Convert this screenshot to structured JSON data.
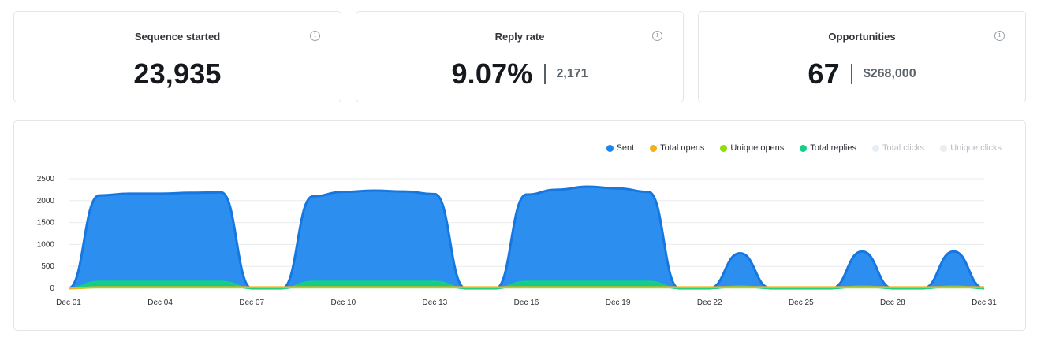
{
  "stats": [
    {
      "title": "Sequence started",
      "value": "23,935",
      "sub": ""
    },
    {
      "title": "Reply rate",
      "value": "9.07%",
      "sub": "2,171"
    },
    {
      "title": "Opportunities",
      "value": "67",
      "sub": "$268,000"
    }
  ],
  "info_glyph": "i",
  "legend": [
    {
      "label": "Sent",
      "color": "#1a86ee",
      "active": true
    },
    {
      "label": "Total opens",
      "color": "#f5b014",
      "active": true
    },
    {
      "label": "Unique opens",
      "color": "#8fe000",
      "active": true
    },
    {
      "label": "Total replies",
      "color": "#12d086",
      "active": true
    },
    {
      "label": "Total clicks",
      "color": "#e8eef5",
      "active": false
    },
    {
      "label": "Unique clicks",
      "color": "#e8eef5",
      "active": false
    }
  ],
  "chart_data": {
    "type": "area",
    "x": [
      "Dec 01",
      "Dec 02",
      "Dec 03",
      "Dec 04",
      "Dec 05",
      "Dec 06",
      "Dec 07",
      "Dec 08",
      "Dec 09",
      "Dec 10",
      "Dec 11",
      "Dec 12",
      "Dec 13",
      "Dec 14",
      "Dec 15",
      "Dec 16",
      "Dec 17",
      "Dec 18",
      "Dec 19",
      "Dec 20",
      "Dec 21",
      "Dec 22",
      "Dec 23",
      "Dec 24",
      "Dec 25",
      "Dec 26",
      "Dec 27",
      "Dec 28",
      "Dec 29",
      "Dec 30",
      "Dec 31"
    ],
    "xticks": [
      "Dec 01",
      "Dec 04",
      "Dec 07",
      "Dec 10",
      "Dec 13",
      "Dec 16",
      "Dec 19",
      "Dec 22",
      "Dec 25",
      "Dec 28",
      "Dec 31"
    ],
    "yticks": [
      0,
      500,
      1000,
      1500,
      2000,
      2500
    ],
    "ylim": [
      0,
      2500
    ],
    "grid": true,
    "legend_position": "top-right",
    "series": [
      {
        "name": "Sent",
        "values": [
          0,
          2120,
          2160,
          2160,
          2180,
          2190,
          0,
          0,
          2100,
          2200,
          2230,
          2210,
          2150,
          0,
          0,
          2140,
          2250,
          2320,
          2280,
          2200,
          0,
          0,
          800,
          0,
          0,
          0,
          840,
          0,
          0,
          840,
          0
        ]
      },
      {
        "name": "Total replies",
        "values": [
          0,
          150,
          150,
          150,
          150,
          150,
          0,
          0,
          150,
          150,
          150,
          150,
          150,
          0,
          0,
          150,
          150,
          150,
          150,
          150,
          0,
          0,
          50,
          0,
          0,
          0,
          50,
          0,
          0,
          50,
          0
        ]
      },
      {
        "name": "Unique opens",
        "values": [
          0,
          20,
          20,
          20,
          20,
          20,
          20,
          20,
          20,
          20,
          20,
          20,
          20,
          20,
          20,
          20,
          20,
          20,
          20,
          20,
          20,
          20,
          20,
          20,
          20,
          20,
          20,
          20,
          20,
          20,
          20
        ]
      },
      {
        "name": "Total opens",
        "values": [
          0,
          25,
          25,
          25,
          25,
          25,
          25,
          25,
          25,
          25,
          25,
          25,
          25,
          25,
          25,
          25,
          25,
          25,
          25,
          25,
          25,
          25,
          25,
          25,
          25,
          25,
          25,
          25,
          25,
          25,
          25
        ]
      }
    ]
  }
}
